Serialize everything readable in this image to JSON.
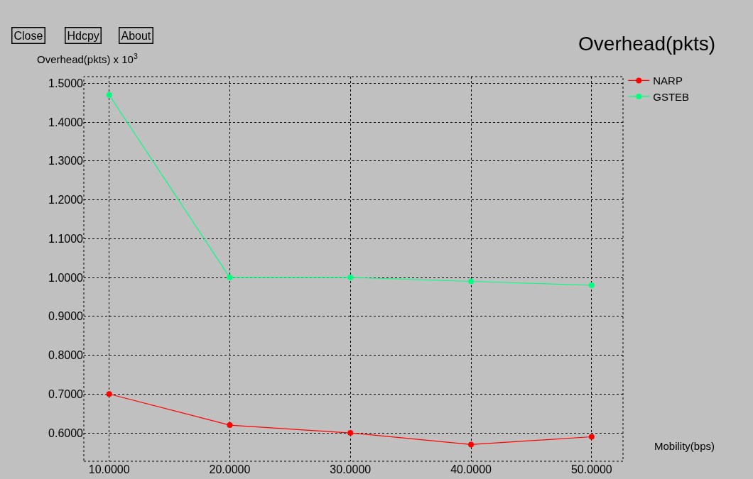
{
  "chart_data": {
    "type": "line",
    "title": "Overhead(pkts)",
    "xlabel": "Mobility(bps)",
    "ylabel": "Overhead(pkts) x 10$^{3}$",
    "annotations": [
      "Close",
      "Hdcpy",
      "About"
    ],
    "x": [
      10,
      20,
      30,
      40,
      50
    ],
    "series": [
      {
        "name": "NARP",
        "color": "#ff0000",
        "values": [
          0.7,
          0.62,
          0.6,
          0.57,
          0.59
        ]
      },
      {
        "name": "GSTEB",
        "color": "#00ff80",
        "values": [
          1.47,
          1.0,
          1.0,
          0.99,
          0.98
        ]
      }
    ],
    "xlim": [
      7.9,
      52.6
    ],
    "ylim": [
      0.527,
      1.517
    ],
    "xticks": [
      {
        "value": 10,
        "label": "10.0000"
      },
      {
        "value": 20,
        "label": "20.0000"
      },
      {
        "value": 30,
        "label": "30.0000"
      },
      {
        "value": 40,
        "label": "40.0000"
      },
      {
        "value": 50,
        "label": "50.0000"
      }
    ],
    "yticks": [
      {
        "value": 0.6,
        "label": "0.6000"
      },
      {
        "value": 0.7,
        "label": "0.7000"
      },
      {
        "value": 0.8,
        "label": "0.8000"
      },
      {
        "value": 0.9,
        "label": "0.9000"
      },
      {
        "value": 1.0,
        "label": "1.0000"
      },
      {
        "value": 1.1,
        "label": "1.1000"
      },
      {
        "value": 1.2,
        "label": "1.2000"
      },
      {
        "value": 1.3,
        "label": "1.3000"
      },
      {
        "value": 1.4,
        "label": "1.4000"
      },
      {
        "value": 1.5,
        "label": "1.5000"
      }
    ],
    "grid": true,
    "legend": "top right",
    "marker": "circle",
    "line_style": "solid"
  }
}
